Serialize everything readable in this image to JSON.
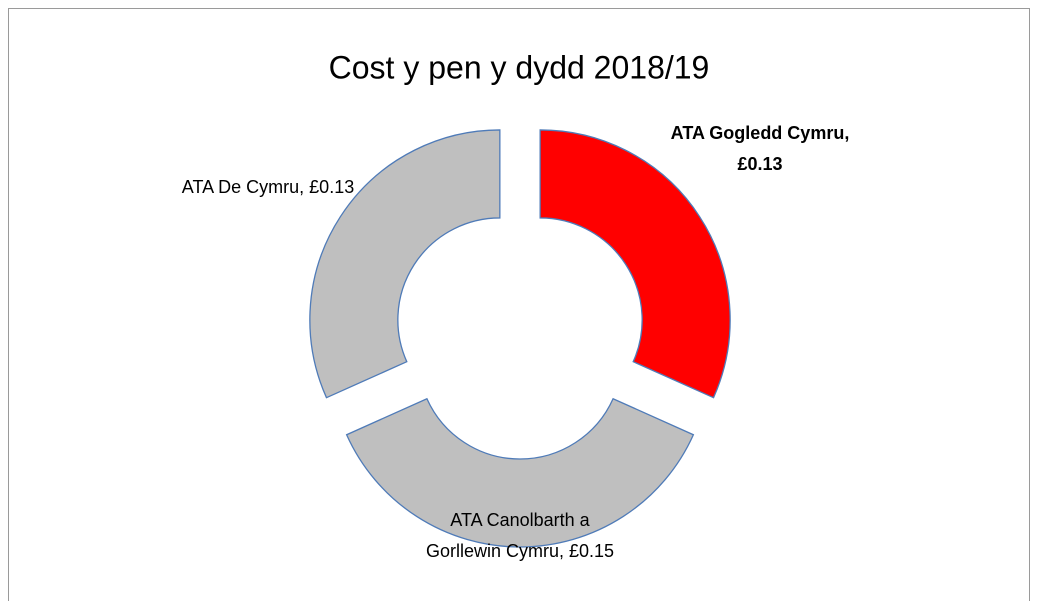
{
  "chart_data": {
    "type": "donut",
    "title": "Cost y pen y dydd 2018/19",
    "categories": [
      "ATA Gogledd Cymru",
      "ATA Canolbarth a Gorllewin Cymru",
      "ATA De Cymru"
    ],
    "values": [
      0.13,
      0.15,
      0.13
    ],
    "value_labels": [
      "£0.13",
      "£0.15",
      "£0.13"
    ],
    "label_separator": ",",
    "colors": [
      "#ff0000",
      "#bfbfbf",
      "#bfbfbf"
    ]
  }
}
